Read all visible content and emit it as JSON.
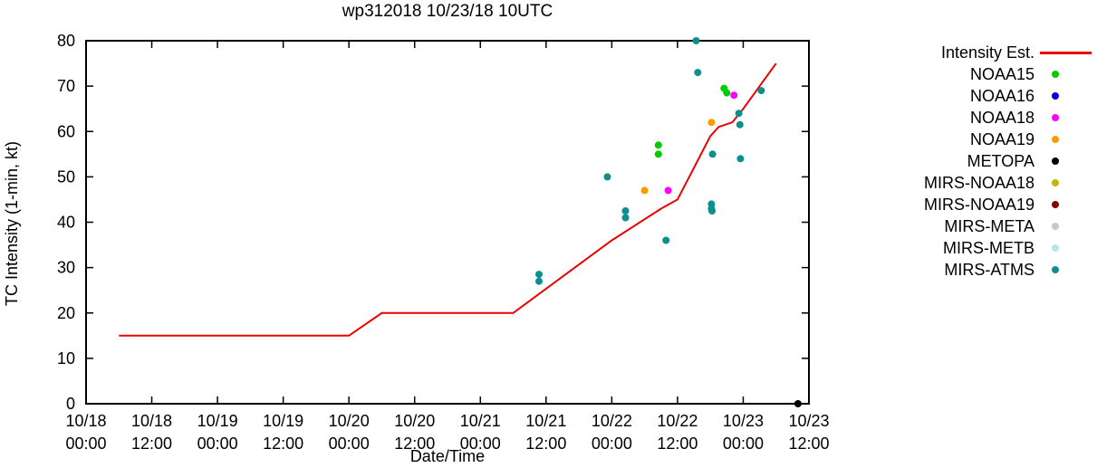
{
  "title": "wp312018 10/23/18 10UTC",
  "xlabel": "Date/Time",
  "ylabel": "TC Intensity (1-min, kt)",
  "chart_data": {
    "type": "line+scatter",
    "title": "wp312018 10/23/18 10UTC",
    "xlabel": "Date/Time",
    "ylabel": "TC Intensity (1-min, kt)",
    "grid": false,
    "legend_position": "right-outside",
    "x_axis": {
      "hours_max": 132,
      "tick_interval_hours": 12,
      "ticks": [
        {
          "date": "10/18",
          "time": "00:00"
        },
        {
          "date": "10/18",
          "time": "12:00"
        },
        {
          "date": "10/19",
          "time": "00:00"
        },
        {
          "date": "10/19",
          "time": "12:00"
        },
        {
          "date": "10/20",
          "time": "00:00"
        },
        {
          "date": "10/20",
          "time": "12:00"
        },
        {
          "date": "10/21",
          "time": "00:00"
        },
        {
          "date": "10/21",
          "time": "12:00"
        },
        {
          "date": "10/22",
          "time": "00:00"
        },
        {
          "date": "10/22",
          "time": "12:00"
        },
        {
          "date": "10/23",
          "time": "00:00"
        },
        {
          "date": "10/23",
          "time": "12:00"
        }
      ]
    },
    "y_axis": {
      "min": 0,
      "max": 80,
      "step": 10
    },
    "line_series": {
      "name": "Intensity Est.",
      "color": "#ee0000",
      "points_h_kt": [
        [
          6,
          15
        ],
        [
          48,
          15
        ],
        [
          54,
          20
        ],
        [
          78,
          20
        ],
        [
          96,
          36
        ],
        [
          105,
          43
        ],
        [
          108,
          45
        ],
        [
          114,
          59
        ],
        [
          115.5,
          61
        ],
        [
          118,
          62
        ],
        [
          120,
          65
        ],
        [
          126,
          75
        ]
      ]
    },
    "scatter_series": [
      {
        "name": "NOAA15",
        "color": "#00cc00",
        "points_h_kt": [
          [
            104.5,
            57
          ],
          [
            104.5,
            55
          ],
          [
            116.5,
            69.5
          ],
          [
            117,
            68.5
          ]
        ]
      },
      {
        "name": "NOAA16",
        "color": "#0000dd",
        "points_h_kt": []
      },
      {
        "name": "NOAA18",
        "color": "#ff00ff",
        "points_h_kt": [
          [
            106.3,
            47
          ],
          [
            118.3,
            68
          ]
        ]
      },
      {
        "name": "NOAA19",
        "color": "#ff9900",
        "points_h_kt": [
          [
            102,
            47
          ],
          [
            114.2,
            62
          ]
        ]
      },
      {
        "name": "METOPA",
        "color": "#000000",
        "points_h_kt": [
          [
            130,
            0
          ]
        ]
      },
      {
        "name": "MIRS-NOAA18",
        "color": "#c8b400",
        "points_h_kt": []
      },
      {
        "name": "MIRS-NOAA19",
        "color": "#8b0000",
        "points_h_kt": []
      },
      {
        "name": "MIRS-META",
        "color": "#c8c8c8",
        "points_h_kt": []
      },
      {
        "name": "MIRS-METB",
        "color": "#b4e6ee",
        "points_h_kt": []
      },
      {
        "name": "MIRS-ATMS",
        "color": "#0e8f8f",
        "points_h_kt": [
          [
            82.7,
            28.5
          ],
          [
            82.7,
            27
          ],
          [
            95.2,
            50
          ],
          [
            98.5,
            42.5
          ],
          [
            98.5,
            41
          ],
          [
            105.9,
            36
          ],
          [
            111.4,
            80
          ],
          [
            111.7,
            73
          ],
          [
            114.2,
            44
          ],
          [
            114.2,
            43
          ],
          [
            114.3,
            42.5
          ],
          [
            114.4,
            55
          ],
          [
            119.2,
            64
          ],
          [
            119.4,
            61.5
          ],
          [
            119.5,
            54
          ],
          [
            123.3,
            69
          ]
        ]
      }
    ]
  }
}
